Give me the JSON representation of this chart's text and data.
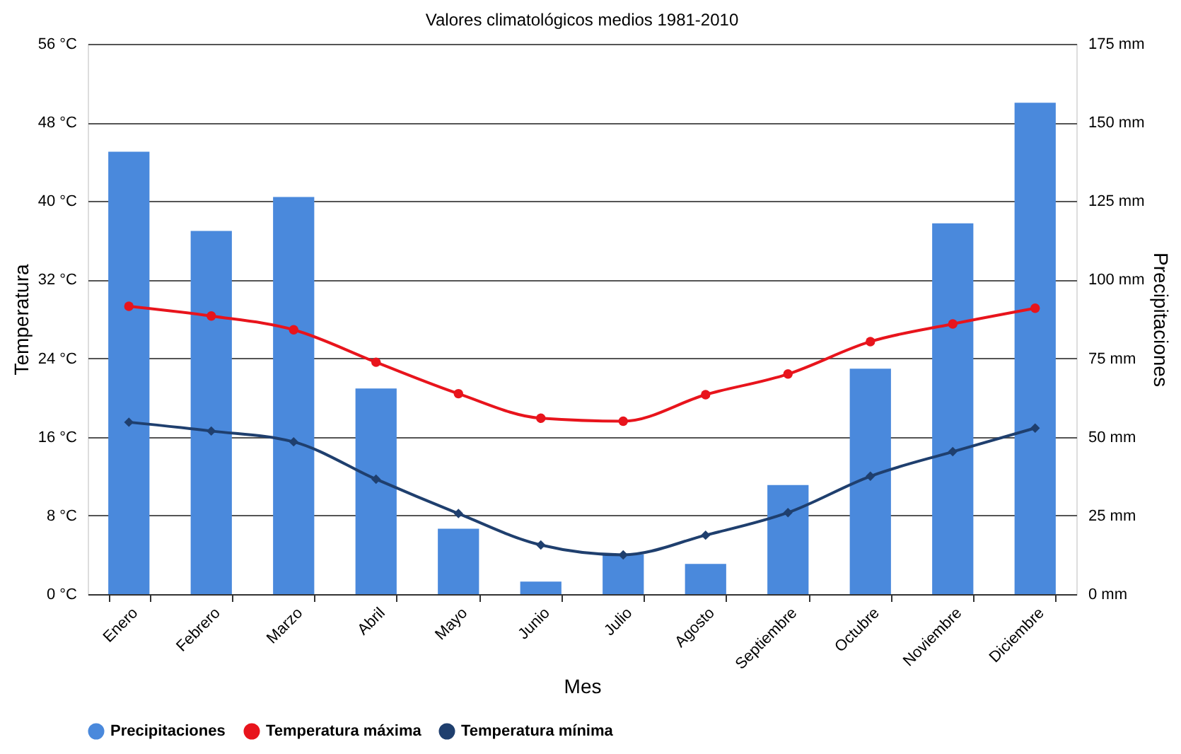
{
  "chart_data": {
    "type": "bar",
    "title": "Valores climatológicos medios 1981-2010",
    "xlabel": "Mes",
    "ylabel": "Temperatura",
    "y2label": "Precipitaciones",
    "categories": [
      "Enero",
      "Febrero",
      "Marzo",
      "Abril",
      "Mayo",
      "Junio",
      "Julio",
      "Agosto",
      "Septiembre",
      "Octubre",
      "Noviembre",
      "Diciembre"
    ],
    "series": [
      {
        "name": "Precipitaciones",
        "axis": "y2",
        "color": "#4a89dc",
        "values": [
          140.7,
          115.5,
          126.3,
          65.4,
          20.8,
          4.0,
          12.7,
          9.6,
          34.7,
          71.7,
          117.9,
          156.3
        ]
      },
      {
        "name": "Temperatura máxima",
        "type": "line",
        "color": "#e8141c",
        "marker": "circle",
        "values": [
          29.3,
          28.3,
          26.9,
          23.6,
          20.4,
          17.9,
          17.6,
          20.3,
          22.4,
          25.7,
          27.5,
          29.1
        ]
      },
      {
        "name": "Temperatura mínima",
        "type": "line",
        "color": "#1f3f6e",
        "marker": "diamond",
        "values": [
          17.5,
          16.6,
          15.5,
          11.7,
          8.2,
          5.0,
          4.0,
          6.0,
          8.3,
          12.0,
          14.5,
          16.9
        ]
      }
    ],
    "ylim": [
      0,
      56
    ],
    "yticks": [
      {
        "value": 0,
        "label": "0 °C"
      },
      {
        "value": 8,
        "label": "8 °C"
      },
      {
        "value": 16,
        "label": "16 °C"
      },
      {
        "value": 24,
        "label": "24 °C"
      },
      {
        "value": 32,
        "label": "32 °C"
      },
      {
        "value": 40,
        "label": "40 °C"
      },
      {
        "value": 48,
        "label": "48 °C"
      },
      {
        "value": 56,
        "label": "56 °C"
      }
    ],
    "y2lim": [
      0,
      175
    ],
    "y2ticks": [
      {
        "value": 0,
        "label": "0 mm"
      },
      {
        "value": 25,
        "label": "25 mm"
      },
      {
        "value": 50,
        "label": "50 mm"
      },
      {
        "value": 75,
        "label": "75 mm"
      },
      {
        "value": 100,
        "label": "100 mm"
      },
      {
        "value": 125,
        "label": "125 mm"
      },
      {
        "value": 150,
        "label": "150 mm"
      },
      {
        "value": 175,
        "label": "175 mm"
      }
    ],
    "grid": "y",
    "legend": "bottom"
  }
}
